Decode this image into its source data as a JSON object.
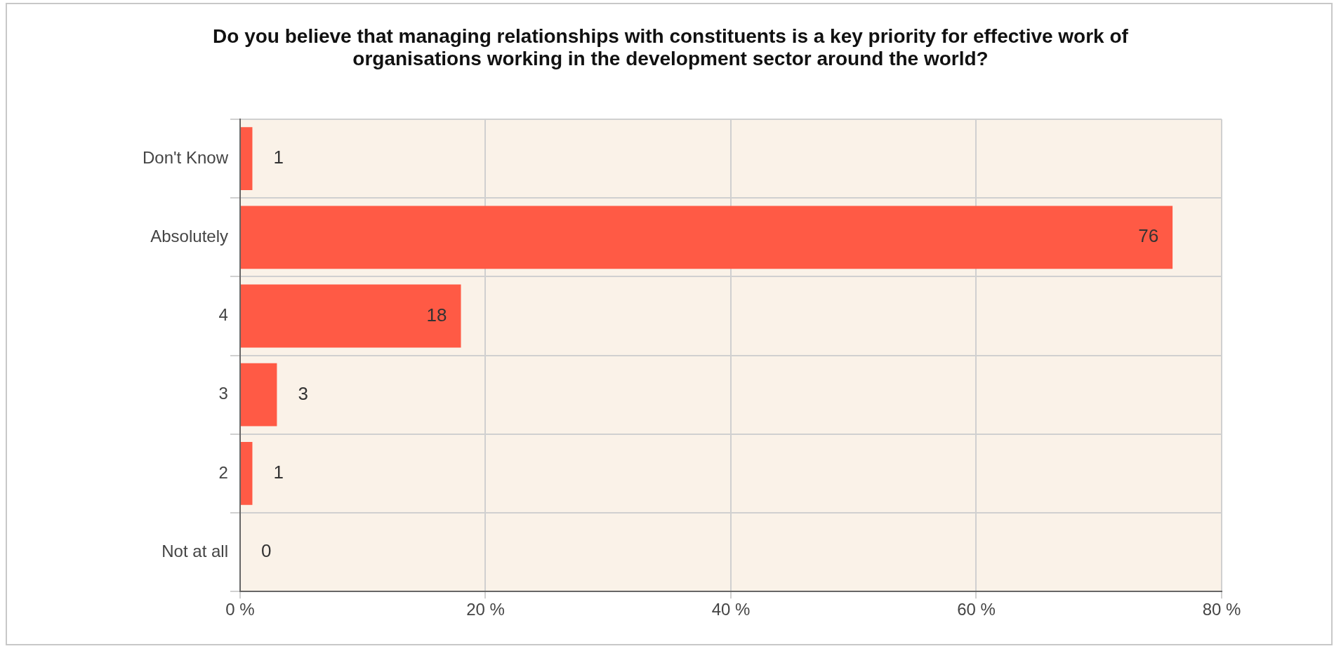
{
  "chart_data": {
    "type": "bar",
    "orientation": "horizontal",
    "title": "Do you believe that managing relationships with constituents is a key priority for effective work of organisations working in the development sector around the world?",
    "categories": [
      "Don't Know",
      "Absolutely",
      "4",
      "3",
      "2",
      "Not at all"
    ],
    "values": [
      1,
      76,
      18,
      3,
      1,
      0
    ],
    "color": "#ff5a45",
    "xlim": [
      0,
      80
    ],
    "xticks": [
      {
        "value": 0,
        "label": "0 %"
      },
      {
        "value": 20,
        "label": "20 %"
      },
      {
        "value": 40,
        "label": "40 %"
      },
      {
        "value": 60,
        "label": "60 %"
      },
      {
        "value": 80,
        "label": "80 %"
      }
    ],
    "grid": true,
    "data_labels": true,
    "legend": false
  }
}
